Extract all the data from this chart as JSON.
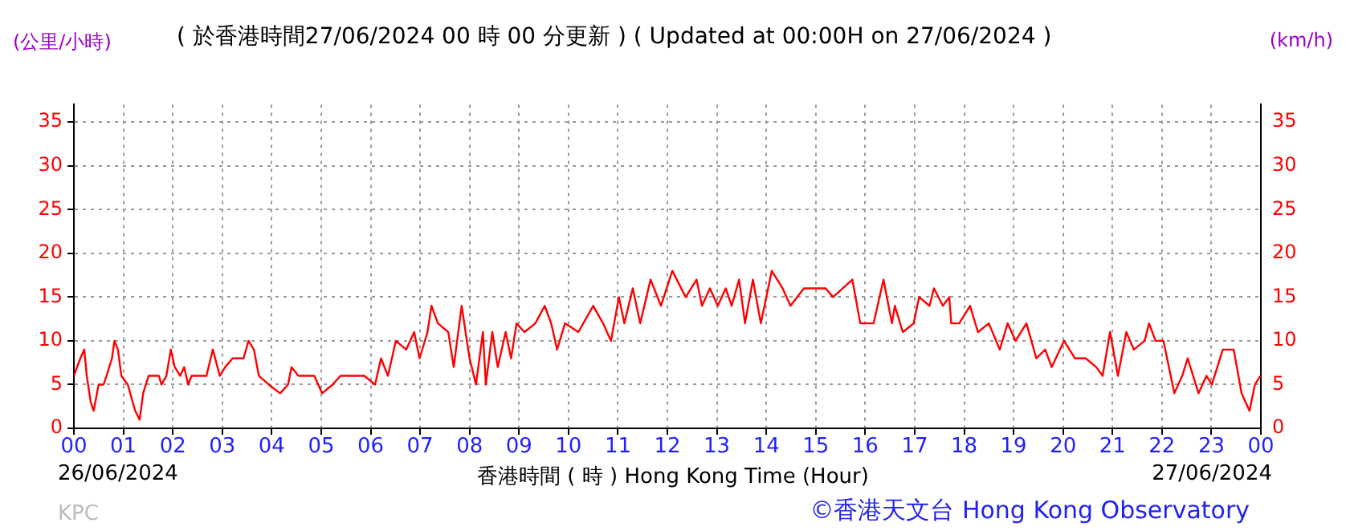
{
  "chart_data": {
    "type": "line",
    "title": "( 於香港時間27/06/2024 00 時 00 分更新 ) ( Updated at 00:00H on 27/06/2024 )",
    "ylabel": "(公里/小時)",
    "y2label": "(km/h)",
    "xlabel": "香港時間 ( 時 )  Hong Kong Time (Hour)",
    "annotations": [
      "26/06/2024",
      "27/06/2024",
      "KPC",
      "©香港天文台 Hong Kong Observatory"
    ],
    "x": [
      0,
      0.13,
      0.21,
      0.26,
      0.34,
      0.4,
      0.5,
      0.6,
      0.66,
      0.77,
      0.82,
      0.89,
      0.96,
      1.09,
      1.24,
      1.33,
      1.4,
      1.51,
      1.72,
      1.77,
      1.87,
      1.96,
      2.04,
      2.15,
      2.23,
      2.31,
      2.38,
      2.68,
      2.81,
      2.95,
      3.06,
      3.21,
      3.43,
      3.53,
      3.64,
      3.74,
      3.94,
      4.17,
      4.33,
      4.4,
      4.54,
      4.86,
      5.02,
      5.23,
      5.39,
      5.66,
      5.87,
      6.09,
      6.21,
      6.35,
      6.51,
      6.72,
      6.88,
      6.99,
      7.15,
      7.23,
      7.36,
      7.57,
      7.68,
      7.84,
      8.0,
      8.13,
      8.27,
      8.33,
      8.46,
      8.57,
      8.73,
      8.84,
      8.95,
      9.11,
      9.33,
      9.52,
      9.65,
      9.77,
      9.93,
      10.2,
      10.3,
      10.5,
      10.7,
      10.86,
      11.02,
      11.13,
      11.3,
      11.45,
      11.66,
      11.87,
      12.1,
      12.37,
      12.59,
      12.7,
      12.86,
      13.02,
      13.18,
      13.3,
      13.45,
      13.57,
      13.73,
      13.89,
      14.11,
      14.33,
      14.49,
      14.76,
      15.09,
      15.2,
      15.35,
      15.74,
      15.9,
      16.17,
      16.37,
      16.54,
      16.6,
      16.76,
      16.98,
      17.09,
      17.3,
      17.39,
      17.57,
      17.7,
      17.74,
      17.9,
      18.12,
      18.28,
      18.5,
      18.72,
      18.88,
      19.04,
      19.26,
      19.46,
      19.64,
      19.77,
      20.02,
      20.24,
      20.46,
      20.67,
      20.8,
      20.95,
      21.11,
      21.28,
      21.43,
      21.65,
      21.74,
      21.87,
      22.03,
      22.25,
      22.41,
      22.52,
      22.74,
      22.9,
      23.01,
      23.23,
      23.45,
      23.61,
      23.77,
      23.88,
      23.99
    ],
    "series": [
      {
        "color": "#ff0000",
        "values": [
          6,
          8,
          9,
          6,
          3,
          2,
          5,
          5,
          6,
          8,
          10,
          9,
          6,
          5,
          2,
          1,
          4,
          6,
          6,
          5,
          6,
          9,
          7,
          6,
          7,
          5,
          6,
          6,
          9,
          6,
          7,
          8,
          8,
          10,
          9,
          6,
          5,
          4,
          5,
          7,
          6,
          6,
          4,
          5,
          6,
          6,
          6,
          5,
          8,
          6,
          10,
          9,
          11,
          8,
          11,
          14,
          12,
          11,
          7,
          14,
          8,
          5,
          11,
          5,
          11,
          7,
          11,
          8,
          12,
          11,
          12,
          14,
          12,
          9,
          12,
          11,
          12,
          14,
          12,
          10,
          15,
          12,
          16,
          12,
          17,
          14,
          18,
          15,
          17,
          14,
          16,
          14,
          16,
          14,
          17,
          12,
          17,
          12,
          18,
          16,
          14,
          16,
          16,
          16,
          15,
          17,
          12,
          12,
          17,
          12,
          14,
          11,
          12,
          15,
          14,
          16,
          14,
          15,
          12,
          12,
          14,
          11,
          12,
          9,
          12,
          10,
          12,
          8,
          9,
          7,
          10,
          8,
          8,
          7,
          6,
          11,
          6,
          11,
          9,
          10,
          12,
          10,
          10,
          4,
          6,
          8,
          4,
          6,
          5,
          9,
          9,
          4,
          2,
          5,
          6
        ]
      }
    ],
    "xlim": [
      0,
      24
    ],
    "xticks": [
      {
        "value": 0,
        "label": "00"
      },
      {
        "value": 1,
        "label": "01"
      },
      {
        "value": 2,
        "label": "02"
      },
      {
        "value": 3,
        "label": "03"
      },
      {
        "value": 4,
        "label": "04"
      },
      {
        "value": 5,
        "label": "05"
      },
      {
        "value": 6,
        "label": "06"
      },
      {
        "value": 7,
        "label": "07"
      },
      {
        "value": 8,
        "label": "08"
      },
      {
        "value": 9,
        "label": "09"
      },
      {
        "value": 10,
        "label": "10"
      },
      {
        "value": 11,
        "label": "11"
      },
      {
        "value": 12,
        "label": "12"
      },
      {
        "value": 13,
        "label": "13"
      },
      {
        "value": 14,
        "label": "14"
      },
      {
        "value": 15,
        "label": "15"
      },
      {
        "value": 16,
        "label": "16"
      },
      {
        "value": 17,
        "label": "17"
      },
      {
        "value": 18,
        "label": "18"
      },
      {
        "value": 19,
        "label": "19"
      },
      {
        "value": 20,
        "label": "20"
      },
      {
        "value": 21,
        "label": "21"
      },
      {
        "value": 22,
        "label": "22"
      },
      {
        "value": 23,
        "label": "23"
      },
      {
        "value": 24,
        "label": "00"
      }
    ],
    "ylim": [
      0,
      37
    ],
    "yticks": [
      0,
      5,
      10,
      15,
      20,
      25,
      30,
      35
    ],
    "y2lim": [
      0,
      37
    ],
    "y2ticks": [
      0,
      5,
      10,
      15,
      20,
      25,
      30,
      35
    ],
    "grid": true,
    "legend": false,
    "marker": "none",
    "line_style": "solid"
  }
}
